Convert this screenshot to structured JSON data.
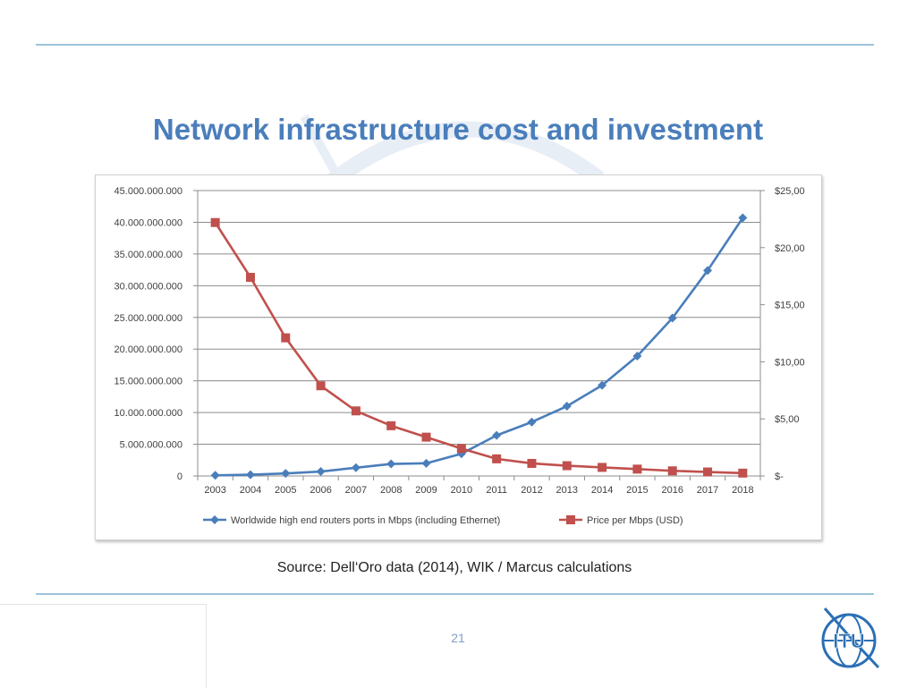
{
  "slide": {
    "title": "Network infrastructure cost and investment",
    "source": "Source: Dell‘Oro data (2014), WIK / Marcus calculations",
    "page_number": "21",
    "logo_text": "ITU"
  },
  "colors": {
    "title": "#4a7ebb",
    "rule": "#9cc3da",
    "series_ports": "#4a7ebb",
    "series_price": "#c0504d",
    "grid": "#8c8c8c",
    "axis_text": "#404040",
    "page_number": "#7f9fc8"
  },
  "chart_data": {
    "type": "line",
    "title": "",
    "x": [
      "2003",
      "2004",
      "2005",
      "2006",
      "2007",
      "2008",
      "2009",
      "2010",
      "2011",
      "2012",
      "2013",
      "2014",
      "2015",
      "2016",
      "2017",
      "2018"
    ],
    "y_left": {
      "min": 0,
      "max": 45000000000,
      "step": 5000000000,
      "tick_labels": [
        "0",
        "5.000.000.000",
        "10.000.000.000",
        "15.000.000.000",
        "20.000.000.000",
        "25.000.000.000",
        "30.000.000.000",
        "35.000.000.000",
        "40.000.000.000",
        "45.000.000.000"
      ]
    },
    "y_right": {
      "min": 0,
      "max": 25,
      "step": 5,
      "tick_labels": [
        "$-",
        "$5,00",
        "$10,00",
        "$15,00",
        "$20,00",
        "$25,00"
      ]
    },
    "series": [
      {
        "name": "Worldwide high end routers ports in Mbps (including Ethernet)",
        "axis": "left",
        "marker": "diamond",
        "values": [
          100000000,
          200000000,
          400000000,
          700000000,
          1300000000,
          1900000000,
          2000000000,
          3500000000,
          6400000000,
          8500000000,
          11000000000,
          14300000000,
          18900000000,
          24900000000,
          32400000000,
          40700000000
        ]
      },
      {
        "name": "Price per Mbps (USD)",
        "axis": "right",
        "marker": "square",
        "values": [
          22.2,
          17.4,
          12.1,
          7.9,
          5.7,
          4.4,
          3.4,
          2.4,
          1.5,
          1.1,
          0.9,
          0.75,
          0.6,
          0.45,
          0.35,
          0.25
        ]
      }
    ],
    "legend_position": "bottom",
    "grid": true
  }
}
